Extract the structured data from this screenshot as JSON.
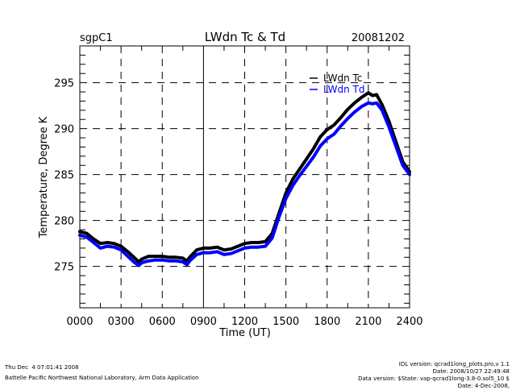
{
  "chart_data": {
    "type": "line",
    "title": "LWdn Tc & Td",
    "site": "sgpC1",
    "date": "20081202",
    "xlabel": "Time (UT)",
    "ylabel": "Temperature, Degree K",
    "xlim": [
      0,
      24
    ],
    "ylim": [
      270.5,
      299
    ],
    "x_ticks": [
      0,
      3,
      6,
      9,
      12,
      15,
      18,
      21,
      24
    ],
    "x_tick_labels": [
      "0000",
      "0300",
      "0600",
      "0900",
      "1200",
      "1500",
      "1800",
      "2100",
      "2400"
    ],
    "y_ticks": [
      275,
      280,
      285,
      290,
      295
    ],
    "y_tick_labels": [
      "275",
      "280",
      "285",
      "290",
      "295"
    ],
    "grid": true,
    "legend_position": "top-right",
    "series": [
      {
        "name": "LWdn Tc",
        "color": "#000000",
        "x": [
          0,
          0.5,
          1,
          1.5,
          2,
          2.5,
          3,
          3.5,
          4,
          4.3,
          4.5,
          5,
          5.5,
          6,
          6.5,
          7,
          7.5,
          7.8,
          8,
          8.5,
          9,
          9.5,
          10,
          10.5,
          11,
          11.5,
          12,
          12.5,
          13,
          13.5,
          14,
          14.5,
          15,
          15.5,
          16,
          16.5,
          17,
          17.5,
          18,
          18.5,
          19,
          19.5,
          20,
          20.5,
          21,
          21.3,
          21.6,
          22,
          22.5,
          23,
          23.5,
          24
        ],
        "values": [
          278.8,
          278.6,
          278.0,
          277.5,
          277.6,
          277.5,
          277.2,
          276.6,
          275.9,
          275.5,
          275.8,
          276.1,
          276.1,
          276.1,
          276.0,
          276.0,
          275.9,
          275.6,
          276.0,
          276.8,
          277.0,
          277.0,
          277.1,
          276.8,
          276.9,
          277.2,
          277.5,
          277.6,
          277.6,
          277.7,
          278.6,
          280.8,
          283.0,
          284.5,
          285.6,
          286.7,
          287.8,
          289.1,
          289.9,
          290.4,
          291.2,
          292.1,
          292.8,
          293.4,
          293.9,
          293.6,
          293.7,
          292.6,
          290.8,
          288.6,
          286.4,
          285.3
        ]
      },
      {
        "name": "LWdn Td",
        "color": "#0000ff",
        "x": [
          0,
          0.5,
          1,
          1.5,
          2,
          2.5,
          3,
          3.5,
          4,
          4.3,
          4.5,
          5,
          5.5,
          6,
          6.5,
          7,
          7.5,
          7.8,
          8,
          8.5,
          9,
          9.5,
          10,
          10.5,
          11,
          11.5,
          12,
          12.5,
          13,
          13.5,
          14,
          14.5,
          15,
          15.5,
          16,
          16.5,
          17,
          17.5,
          18,
          18.5,
          19,
          19.5,
          20,
          20.5,
          21,
          21.3,
          21.6,
          22,
          22.5,
          23,
          23.5,
          24
        ],
        "values": [
          278.4,
          278.2,
          277.6,
          277.0,
          277.2,
          277.1,
          276.8,
          276.1,
          275.4,
          275.1,
          275.4,
          275.6,
          275.7,
          275.7,
          275.6,
          275.6,
          275.5,
          275.2,
          275.6,
          276.3,
          276.5,
          276.5,
          276.6,
          276.3,
          276.4,
          276.7,
          277.0,
          277.1,
          277.1,
          277.2,
          278.1,
          280.4,
          282.4,
          283.8,
          284.9,
          285.9,
          286.9,
          288.1,
          288.9,
          289.4,
          290.3,
          291.1,
          291.8,
          292.4,
          292.8,
          292.7,
          292.8,
          292.0,
          290.2,
          288.1,
          286.0,
          285.0
        ]
      }
    ]
  },
  "footer": {
    "timestamp": "Thu Dec  4 07:01:41 2008",
    "organization": "Battelle Pacific Northwest National Laboratory, Arm Data Application",
    "idl_version": "IDL version: qcrad1long_plots.pro,v 1.1",
    "idl_date": "Date: 2008/10/27 22:49:48",
    "data_version": "Data version: $State: vap-qcrad1long-3.8-0.sol5_10 $",
    "data_date": "Date: 4-Dec-2008,"
  }
}
